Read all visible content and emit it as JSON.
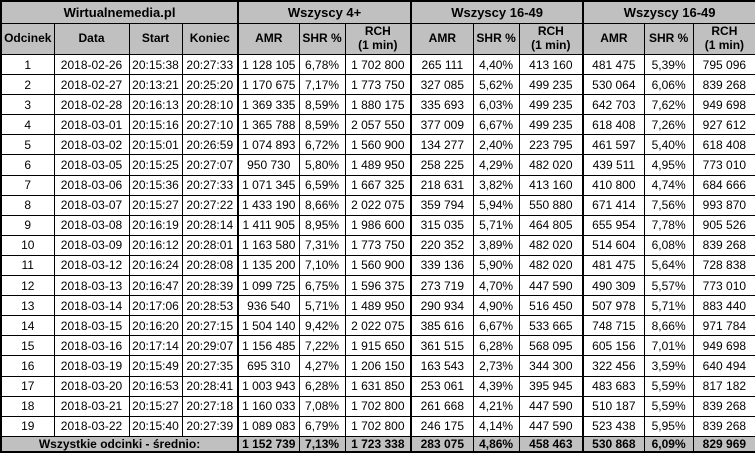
{
  "colors": {
    "header_bg": "#c0c0c0",
    "summary_bg": "#c0c0c0",
    "row_bg": "#ffffff",
    "border": "#000000",
    "text": "#000000"
  },
  "chart_data": {
    "type": "table",
    "title": "Wirtualnemedia.pl",
    "column_groups": [
      {
        "label": "Wirtualnemedia.pl",
        "span": 4
      },
      {
        "label": "Wszyscy 4+",
        "span": 3
      },
      {
        "label": "Wszyscy 16-49",
        "span": 3
      },
      {
        "label": "Wszyscy 16-49",
        "span": 3
      }
    ],
    "columns": [
      {
        "id": "odcinek",
        "label": "Odcinek"
      },
      {
        "id": "data",
        "label": "Data"
      },
      {
        "id": "start",
        "label": "Start"
      },
      {
        "id": "koniec",
        "label": "Koniec"
      },
      {
        "id": "amr-4plus",
        "label": "AMR"
      },
      {
        "id": "shr-4plus",
        "label": "SHR %"
      },
      {
        "id": "rch-4plus",
        "label": "RCH\n(1 min)"
      },
      {
        "id": "amr-16-49-a",
        "label": "AMR"
      },
      {
        "id": "shr-16-49-a",
        "label": "SHR %"
      },
      {
        "id": "rch-16-49-a",
        "label": "RCH\n(1 min)"
      },
      {
        "id": "amr-16-49-b",
        "label": "AMR"
      },
      {
        "id": "shr-16-49-b",
        "label": "SHR %"
      },
      {
        "id": "rch-16-49-b",
        "label": "RCH\n(1 min)"
      }
    ],
    "rows": [
      [
        "1",
        "2018-02-26",
        "20:15:38",
        "20:27:33",
        "1 128 105",
        "6,78%",
        "1 702 800",
        "265 111",
        "4,40%",
        "413 160",
        "481 475",
        "5,39%",
        "795 096"
      ],
      [
        "2",
        "2018-02-27",
        "20:13:21",
        "20:25:20",
        "1 170 675",
        "7,17%",
        "1 773 750",
        "327 085",
        "5,62%",
        "499 235",
        "530 064",
        "6,06%",
        "839 268"
      ],
      [
        "3",
        "2018-02-28",
        "20:16:13",
        "20:28:10",
        "1 369 335",
        "8,59%",
        "1 880 175",
        "335 693",
        "6,03%",
        "499 235",
        "642 703",
        "7,62%",
        "949 698"
      ],
      [
        "4",
        "2018-03-01",
        "20:15:16",
        "20:27:10",
        "1 365 788",
        "8,59%",
        "2 057 550",
        "377 009",
        "6,67%",
        "499 235",
        "618 408",
        "7,26%",
        "927 612"
      ],
      [
        "5",
        "2018-03-02",
        "20:15:01",
        "20:26:59",
        "1 074 893",
        "6,72%",
        "1 560 900",
        "134 277",
        "2,40%",
        "223 795",
        "461 597",
        "5,40%",
        "618 408"
      ],
      [
        "6",
        "2018-03-05",
        "20:15:25",
        "20:27:07",
        "950 730",
        "5,80%",
        "1 489 950",
        "258 225",
        "4,29%",
        "482 020",
        "439 511",
        "4,95%",
        "773 010"
      ],
      [
        "7",
        "2018-03-06",
        "20:15:36",
        "20:27:33",
        "1 071 345",
        "6,59%",
        "1 667 325",
        "218 631",
        "3,82%",
        "413 160",
        "410 800",
        "4,74%",
        "684 666"
      ],
      [
        "8",
        "2018-03-07",
        "20:15:27",
        "20:27:22",
        "1 433 190",
        "8,66%",
        "2 022 075",
        "359 794",
        "5,94%",
        "550 880",
        "671 414",
        "7,56%",
        "993 870"
      ],
      [
        "9",
        "2018-03-08",
        "20:16:19",
        "20:28:14",
        "1 411 905",
        "8,95%",
        "1 986 600",
        "315 035",
        "5,71%",
        "464 805",
        "655 954",
        "7,78%",
        "905 526"
      ],
      [
        "10",
        "2018-03-09",
        "20:16:12",
        "20:28:01",
        "1 163 580",
        "7,31%",
        "1 773 750",
        "220 352",
        "3,89%",
        "482 020",
        "514 604",
        "6,08%",
        "839 268"
      ],
      [
        "11",
        "2018-03-12",
        "20:16:24",
        "20:28:08",
        "1 135 200",
        "7,10%",
        "1 560 900",
        "339 136",
        "5,90%",
        "482 020",
        "481 475",
        "5,64%",
        "728 838"
      ],
      [
        "12",
        "2018-03-13",
        "20:16:47",
        "20:28:39",
        "1 099 725",
        "6,75%",
        "1 596 375",
        "273 719",
        "4,70%",
        "447 590",
        "490 309",
        "5,57%",
        "773 010"
      ],
      [
        "13",
        "2018-03-14",
        "20:17:06",
        "20:28:53",
        "936 540",
        "5,71%",
        "1 489 950",
        "290 934",
        "4,90%",
        "516 450",
        "507 978",
        "5,71%",
        "883 440"
      ],
      [
        "14",
        "2018-03-15",
        "20:16:20",
        "20:27:15",
        "1 504 140",
        "9,42%",
        "2 022 075",
        "385 616",
        "6,67%",
        "533 665",
        "748 715",
        "8,66%",
        "971 784"
      ],
      [
        "15",
        "2018-03-16",
        "20:17:14",
        "20:29:07",
        "1 156 485",
        "7,22%",
        "1 915 650",
        "361 515",
        "6,28%",
        "568 095",
        "605 156",
        "7,01%",
        "949 698"
      ],
      [
        "16",
        "2018-03-19",
        "20:15:49",
        "20:27:35",
        "695 310",
        "4,27%",
        "1 206 150",
        "163 543",
        "2,73%",
        "344 300",
        "322 456",
        "3,59%",
        "640 494"
      ],
      [
        "17",
        "2018-03-20",
        "20:16:53",
        "20:28:41",
        "1 003 943",
        "6,28%",
        "1 631 850",
        "253 061",
        "4,39%",
        "395 945",
        "483 683",
        "5,59%",
        "817 182"
      ],
      [
        "18",
        "2018-03-21",
        "20:15:27",
        "20:27:18",
        "1 160 033",
        "7,08%",
        "1 702 800",
        "261 668",
        "4,21%",
        "447 590",
        "510 187",
        "5,59%",
        "839 268"
      ],
      [
        "19",
        "2018-03-22",
        "20:15:40",
        "20:27:39",
        "1 089 083",
        "6,79%",
        "1 702 800",
        "246 175",
        "4,14%",
        "447 590",
        "523 438",
        "5,95%",
        "839 268"
      ]
    ],
    "summary_row": {
      "label": "Wszystkie odcinki - średnio:",
      "values": [
        "1 152 739",
        "7,13%",
        "1 723 338",
        "283 075",
        "4,86%",
        "458 463",
        "530 868",
        "6,09%",
        "829 969"
      ]
    }
  }
}
